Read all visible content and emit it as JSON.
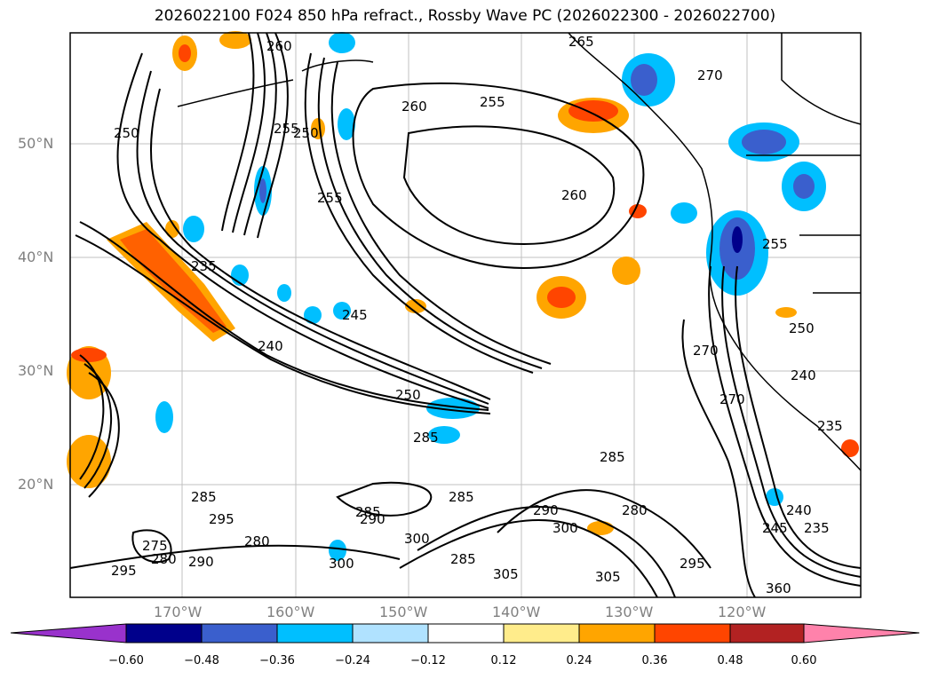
{
  "title": "2026022100 F024 850 hPa refract., Rossby Wave PC (2026022300 - 2026022700)",
  "lat_labels": [
    "50°N",
    "40°N",
    "30°N",
    "20°N"
  ],
  "lon_labels": [
    "170°W",
    "160°W",
    "150°W",
    "140°W",
    "130°W",
    "120°W"
  ],
  "contour_labels": [
    "260",
    "265",
    "270",
    "255",
    "260",
    "250",
    "255",
    "250",
    "260",
    "255",
    "235",
    "245",
    "240",
    "250",
    "285",
    "270",
    "270",
    "255",
    "250",
    "240",
    "235",
    "285",
    "285",
    "290",
    "300",
    "280",
    "285",
    "285",
    "290",
    "295",
    "280",
    "275",
    "280",
    "295",
    "305",
    "300",
    "305",
    "295",
    "285",
    "245",
    "240",
    "235",
    "300",
    "290",
    "360"
  ],
  "colorbar": {
    "ticks": [
      "−0.60",
      "−0.48",
      "−0.36",
      "−0.24",
      "−0.12",
      "0.12",
      "0.24",
      "0.36",
      "0.48",
      "0.60"
    ],
    "colors": [
      "#9932cc",
      "#00008b",
      "#3a5fcd",
      "#00bfff",
      "#b0e2ff",
      "#ffffff",
      "#ffec8b",
      "#ffa500",
      "#ff4500",
      "#b22222",
      "#ff82ab"
    ]
  }
}
